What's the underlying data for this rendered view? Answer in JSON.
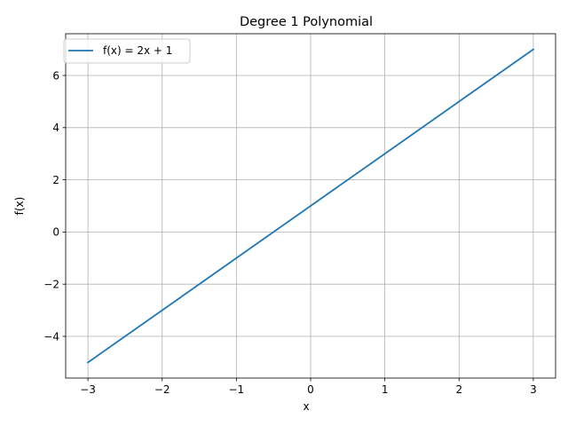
{
  "chart_data": {
    "type": "line",
    "title": "Degree 1 Polynomial",
    "xlabel": "x",
    "ylabel": "f(x)",
    "xlim": [
      -3.3,
      3.3
    ],
    "ylim": [
      -5.6,
      7.6
    ],
    "x_ticks": [
      -3,
      -2,
      -1,
      0,
      1,
      2,
      3
    ],
    "x_tick_labels": [
      "−3",
      "−2",
      "−1",
      "0",
      "1",
      "2",
      "3"
    ],
    "y_ticks": [
      -4,
      -2,
      0,
      2,
      4,
      6
    ],
    "y_tick_labels": [
      "−4",
      "−2",
      "0",
      "2",
      "4",
      "6"
    ],
    "grid": true,
    "legend_position": "top-left",
    "series": [
      {
        "name": "f(x) = 2x + 1",
        "color": "#1f77b4",
        "x": [
          -3,
          -2,
          -1,
          0,
          1,
          2,
          3
        ],
        "y": [
          -5,
          -3,
          -1,
          1,
          3,
          5,
          7
        ]
      }
    ]
  }
}
